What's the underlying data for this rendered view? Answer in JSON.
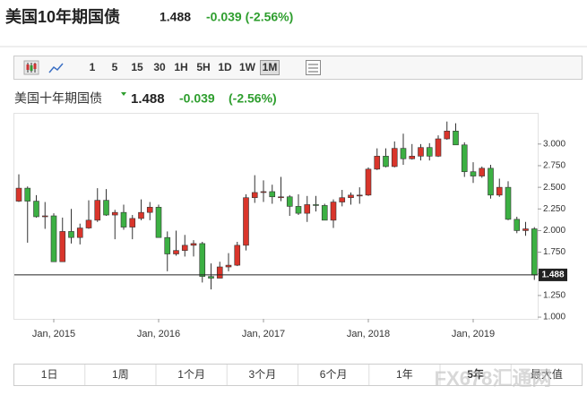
{
  "header": {
    "title": "美国10年期国债",
    "price": "1.488",
    "change": "-0.039 (-2.56%)"
  },
  "toolbar": {
    "intervals": [
      "1",
      "5",
      "15",
      "30",
      "1H",
      "5H",
      "1D",
      "1W",
      "1M"
    ]
  },
  "legend": {
    "name": "美国十年期国债",
    "price": "1.488",
    "change": "-0.039",
    "change_pct": "(-2.56%)"
  },
  "periods": [
    "1日",
    "1周",
    "1个月",
    "3个月",
    "6个月",
    "1年",
    "5年",
    "最大值"
  ],
  "watermark": "FX678汇通网",
  "chart_data": {
    "type": "candlestick",
    "up_color": "#d9352b",
    "down_color": "#3cb043",
    "categories": [
      null,
      null,
      null,
      null,
      "Jan, 2015",
      null,
      null,
      null,
      null,
      null,
      null,
      null,
      null,
      null,
      null,
      null,
      "Jan, 2016",
      null,
      null,
      null,
      null,
      null,
      null,
      null,
      null,
      null,
      null,
      null,
      "Jan, 2017",
      null,
      null,
      null,
      null,
      null,
      null,
      null,
      null,
      null,
      null,
      null,
      "Jan, 2018",
      null,
      null,
      null,
      null,
      null,
      null,
      null,
      null,
      null,
      null,
      null,
      "Jan, 2019",
      null,
      null,
      null,
      null,
      null,
      null,
      null
    ],
    "open": [
      2.34,
      2.49,
      2.34,
      2.16,
      2.17,
      1.64,
      1.99,
      1.92,
      2.03,
      2.12,
      2.35,
      2.18,
      2.21,
      2.04,
      2.14,
      2.21,
      2.27,
      1.92,
      1.73,
      1.77,
      1.83,
      1.85,
      1.47,
      1.45,
      1.58,
      1.6,
      1.83,
      2.38,
      2.44,
      2.45,
      2.39,
      2.39,
      2.28,
      2.2,
      2.3,
      2.29,
      2.12,
      2.33,
      2.38,
      2.41,
      2.41,
      2.71,
      2.86,
      2.74,
      2.95,
      2.83,
      2.86,
      2.96,
      2.86,
      3.06,
      3.15,
      2.99,
      2.68,
      2.63,
      2.72,
      2.41,
      2.5,
      2.13,
      2.0,
      2.02
    ],
    "high": [
      2.65,
      2.51,
      2.41,
      2.33,
      2.2,
      2.15,
      2.25,
      2.08,
      2.35,
      2.49,
      2.48,
      2.24,
      2.3,
      2.18,
      2.36,
      2.33,
      2.3,
      1.99,
      2.0,
      1.95,
      1.89,
      1.87,
      1.62,
      1.64,
      1.74,
      1.87,
      2.42,
      2.64,
      2.58,
      2.53,
      2.62,
      2.41,
      2.42,
      2.4,
      2.4,
      2.31,
      2.36,
      2.47,
      2.44,
      2.5,
      2.73,
      2.95,
      2.95,
      3.03,
      3.12,
      3.0,
      3.0,
      3.01,
      3.1,
      3.26,
      3.24,
      3.02,
      2.79,
      2.74,
      2.76,
      2.6,
      2.57,
      2.16,
      2.1,
      2.04
    ],
    "low": [
      2.33,
      1.86,
      2.15,
      2.02,
      1.64,
      1.65,
      1.85,
      1.84,
      2.02,
      2.1,
      2.17,
      1.9,
      2.01,
      1.9,
      2.12,
      2.12,
      1.92,
      1.53,
      1.71,
      1.7,
      1.7,
      1.4,
      1.32,
      1.45,
      1.53,
      1.59,
      1.77,
      2.32,
      2.33,
      2.31,
      2.34,
      2.17,
      2.18,
      2.1,
      2.22,
      2.13,
      2.03,
      2.28,
      2.3,
      2.31,
      2.4,
      2.7,
      2.73,
      2.73,
      2.76,
      2.82,
      2.81,
      2.81,
      2.85,
      3.05,
      2.99,
      2.62,
      2.55,
      2.61,
      2.37,
      2.39,
      2.12,
      1.97,
      1.94,
      1.43
    ],
    "close": [
      2.49,
      2.34,
      2.16,
      2.17,
      1.64,
      1.99,
      1.92,
      2.03,
      2.12,
      2.35,
      2.18,
      2.21,
      2.04,
      2.14,
      2.21,
      2.27,
      1.92,
      1.73,
      1.77,
      1.83,
      1.85,
      1.47,
      1.45,
      1.58,
      1.6,
      1.83,
      2.38,
      2.44,
      2.45,
      2.39,
      2.39,
      2.28,
      2.2,
      2.3,
      2.29,
      2.12,
      2.33,
      2.38,
      2.41,
      2.41,
      2.71,
      2.86,
      2.74,
      2.95,
      2.83,
      2.86,
      2.96,
      2.86,
      3.06,
      3.15,
      2.99,
      2.68,
      2.63,
      2.72,
      2.41,
      2.5,
      2.13,
      2.0,
      2.02,
      1.488
    ],
    "ylim": [
      0.98,
      3.35
    ],
    "yticks": [
      {
        "value": 1,
        "label": "1.000"
      },
      {
        "value": 1.25,
        "label": "1.250"
      },
      {
        "value": 1.5,
        "label": "1.500"
      },
      {
        "value": 1.75,
        "label": "1.750"
      },
      {
        "value": 2,
        "label": "2.000"
      },
      {
        "value": 2.25,
        "label": "2.250"
      },
      {
        "value": 2.5,
        "label": "2.500"
      },
      {
        "value": 2.75,
        "label": "2.750"
      },
      {
        "value": 3,
        "label": "3.000"
      }
    ]
  }
}
